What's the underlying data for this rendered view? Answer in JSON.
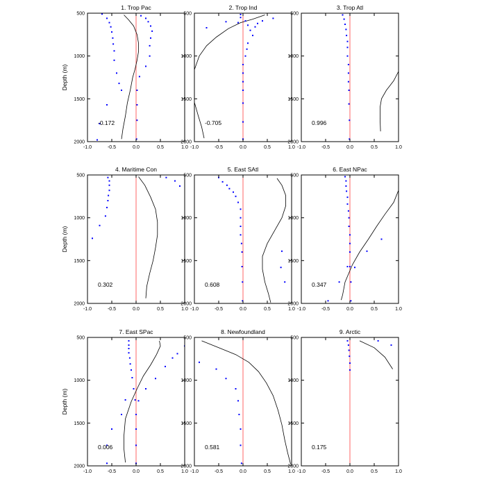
{
  "chart_data": [
    {
      "type": "line",
      "title": "1. Trop Pac",
      "stat": "-0.172",
      "ylabel": "Depth (m)",
      "xlim": [
        -1,
        1
      ],
      "ylim": [
        500,
        2000
      ],
      "yreverse": true,
      "xticks": [
        "-1.0",
        "-0.5",
        "0.0",
        "0.5",
        "1.0"
      ],
      "yticks": [
        "500",
        "1000",
        "1500",
        "2000"
      ],
      "zero_line_color": "#ff6666",
      "point_color": "#0000ff",
      "curve": [
        [
          -0.25,
          520
        ],
        [
          -0.15,
          580
        ],
        [
          -0.05,
          650
        ],
        [
          0.02,
          750
        ],
        [
          0.05,
          850
        ],
        [
          0.05,
          950
        ],
        [
          0.02,
          1050
        ],
        [
          -0.02,
          1150
        ],
        [
          -0.07,
          1250
        ],
        [
          -0.12,
          1400
        ],
        [
          -0.18,
          1550
        ],
        [
          -0.22,
          1700
        ],
        [
          -0.27,
          1850
        ],
        [
          -0.3,
          1970
        ]
      ],
      "points": [
        [
          -0.7,
          510
        ],
        [
          -0.6,
          560
        ],
        [
          -0.55,
          610
        ],
        [
          -0.52,
          660
        ],
        [
          -0.5,
          720
        ],
        [
          -0.48,
          790
        ],
        [
          -0.47,
          860
        ],
        [
          -0.45,
          940
        ],
        [
          -0.45,
          1050
        ],
        [
          -0.4,
          1200
        ],
        [
          -0.35,
          1320
        ],
        [
          -0.3,
          1400
        ],
        [
          -0.6,
          1570
        ],
        [
          -0.75,
          1790
        ],
        [
          -0.8,
          1980
        ],
        [
          0.1,
          530
        ],
        [
          0.2,
          560
        ],
        [
          0.25,
          600
        ],
        [
          0.3,
          650
        ],
        [
          0.33,
          710
        ],
        [
          0.3,
          790
        ],
        [
          0.28,
          880
        ],
        [
          0.28,
          1000
        ],
        [
          0.2,
          1120
        ],
        [
          0.07,
          1240
        ],
        [
          0.02,
          1400
        ],
        [
          0.02,
          1570
        ],
        [
          0.02,
          1750
        ],
        [
          0.01,
          1970
        ]
      ]
    },
    {
      "type": "line",
      "title": "2. Trop Ind",
      "stat": "-0.705",
      "xlim": [
        -1,
        1
      ],
      "ylim": [
        500,
        2000
      ],
      "yreverse": true,
      "xticks": [
        "-1.0",
        "-0.5",
        "0.0",
        "0.5",
        "1.0"
      ],
      "yticks": [
        "500",
        "1000",
        "1500",
        "2000"
      ],
      "zero_line_color": "#ff6666",
      "point_color": "#0000ff",
      "curve": [
        [
          0.45,
          520
        ],
        [
          0.2,
          570
        ],
        [
          -0.05,
          610
        ],
        [
          -0.3,
          680
        ],
        [
          -0.55,
          780
        ],
        [
          -0.75,
          880
        ],
        [
          -0.9,
          1000
        ],
        [
          -1.0,
          1160
        ],
        [
          -1.0,
          1540
        ],
        [
          -0.92,
          1700
        ],
        [
          -0.85,
          1830
        ],
        [
          -0.8,
          1960
        ]
      ],
      "points": [
        [
          -0.05,
          515
        ],
        [
          -0.05,
          550
        ],
        [
          0.05,
          590
        ],
        [
          0.1,
          640
        ],
        [
          0.15,
          700
        ],
        [
          0.2,
          760
        ],
        [
          0.1,
          850
        ],
        [
          0.08,
          920
        ],
        [
          0.05,
          1000
        ],
        [
          0.0,
          1100
        ],
        [
          0.0,
          1200
        ],
        [
          0.0,
          1300
        ],
        [
          0.0,
          1400
        ],
        [
          0.0,
          1550
        ],
        [
          0.0,
          1770
        ],
        [
          0.0,
          1970
        ],
        [
          0.62,
          560
        ],
        [
          0.4,
          590
        ],
        [
          0.3,
          620
        ],
        [
          0.25,
          660
        ],
        [
          -0.1,
          610
        ],
        [
          -0.35,
          600
        ],
        [
          -0.75,
          670
        ]
      ]
    },
    {
      "type": "line",
      "title": "3. Trop Atl",
      "stat": "0.996",
      "xlim": [
        -1,
        1
      ],
      "ylim": [
        500,
        2000
      ],
      "yreverse": true,
      "xticks": [
        "-1.0",
        "-0.5",
        "0.0",
        "0.5",
        "1.0"
      ],
      "yticks": [
        "500",
        "1000",
        "1500",
        "2000"
      ],
      "zero_line_color": "#ff6666",
      "point_color": "#0000ff",
      "curve": [
        [
          1.0,
          1180
        ],
        [
          0.9,
          1290
        ],
        [
          0.75,
          1400
        ],
        [
          0.65,
          1500
        ],
        [
          0.62,
          1600
        ],
        [
          0.62,
          1730
        ],
        [
          0.63,
          1880
        ]
      ],
      "points": [
        [
          -0.15,
          520
        ],
        [
          -0.12,
          570
        ],
        [
          -0.1,
          630
        ],
        [
          -0.08,
          690
        ],
        [
          -0.07,
          760
        ],
        [
          -0.05,
          830
        ],
        [
          -0.05,
          900
        ],
        [
          -0.05,
          1000
        ],
        [
          -0.03,
          1100
        ],
        [
          -0.03,
          1200
        ],
        [
          -0.03,
          1300
        ],
        [
          -0.02,
          1400
        ],
        [
          -0.02,
          1560
        ],
        [
          -0.01,
          1750
        ],
        [
          -0.01,
          1970
        ]
      ]
    },
    {
      "type": "line",
      "title": "4. Maritime Con",
      "stat": "0.302",
      "ylabel": "Depth (m)",
      "xlim": [
        -1,
        1
      ],
      "ylim": [
        500,
        2000
      ],
      "yreverse": true,
      "xticks": [
        "-1.0",
        "-0.5",
        "0.0",
        "0.5",
        "1.0"
      ],
      "yticks": [
        "500",
        "1000",
        "1500",
        "2000"
      ],
      "zero_line_color": "#ff6666",
      "point_color": "#0000ff",
      "curve": [
        [
          0.05,
          520
        ],
        [
          0.18,
          620
        ],
        [
          0.3,
          760
        ],
        [
          0.4,
          900
        ],
        [
          0.44,
          1050
        ],
        [
          0.44,
          1200
        ],
        [
          0.4,
          1350
        ],
        [
          0.35,
          1500
        ],
        [
          0.28,
          1650
        ],
        [
          0.22,
          1800
        ],
        [
          0.2,
          1940
        ]
      ],
      "points": [
        [
          -0.58,
          530
        ],
        [
          -0.55,
          570
        ],
        [
          -0.55,
          620
        ],
        [
          -0.55,
          680
        ],
        [
          -0.57,
          740
        ],
        [
          -0.58,
          800
        ],
        [
          -0.6,
          880
        ],
        [
          -0.63,
          980
        ],
        [
          -0.75,
          1090
        ],
        [
          -0.9,
          1240
        ],
        [
          0.62,
          530
        ],
        [
          0.8,
          570
        ],
        [
          0.9,
          630
        ]
      ]
    },
    {
      "type": "line",
      "title": "5. East SAtl",
      "stat": "0.608",
      "xlim": [
        -1,
        1
      ],
      "ylim": [
        500,
        2000
      ],
      "yreverse": true,
      "xticks": [
        "-1.0",
        "-0.5",
        "0.0",
        "0.5",
        "1.0"
      ],
      "yticks": [
        "500",
        "1000",
        "1500",
        "2000"
      ],
      "zero_line_color": "#ff6666",
      "point_color": "#0000ff",
      "curve": [
        [
          0.7,
          540
        ],
        [
          0.8,
          620
        ],
        [
          0.88,
          740
        ],
        [
          0.88,
          860
        ],
        [
          0.8,
          1000
        ],
        [
          0.65,
          1150
        ],
        [
          0.5,
          1300
        ],
        [
          0.4,
          1450
        ],
        [
          0.4,
          1600
        ],
        [
          0.45,
          1750
        ],
        [
          0.52,
          1880
        ],
        [
          0.57,
          1990
        ]
      ],
      "points": [
        [
          -0.5,
          530
        ],
        [
          -0.42,
          580
        ],
        [
          -0.33,
          620
        ],
        [
          -0.28,
          660
        ],
        [
          -0.2,
          700
        ],
        [
          -0.15,
          750
        ],
        [
          -0.1,
          820
        ],
        [
          -0.05,
          900
        ],
        [
          -0.05,
          1000
        ],
        [
          -0.05,
          1100
        ],
        [
          -0.05,
          1200
        ],
        [
          -0.03,
          1300
        ],
        [
          -0.02,
          1400
        ],
        [
          -0.02,
          1570
        ],
        [
          -0.01,
          1750
        ],
        [
          -0.01,
          1970
        ],
        [
          0.8,
          1390
        ],
        [
          0.78,
          1580
        ],
        [
          0.86,
          1750
        ]
      ]
    },
    {
      "type": "line",
      "title": "6. East NPac",
      "stat": "0.347",
      "xlim": [
        -1,
        1
      ],
      "ylim": [
        500,
        2000
      ],
      "yreverse": true,
      "xticks": [
        "-1.0",
        "-0.5",
        "0.0",
        "0.5",
        "1.0"
      ],
      "yticks": [
        "500",
        "1000",
        "1500",
        "2000"
      ],
      "zero_line_color": "#ff6666",
      "point_color": "#0000ff",
      "curve": [
        [
          1.0,
          680
        ],
        [
          0.9,
          820
        ],
        [
          0.72,
          960
        ],
        [
          0.55,
          1100
        ],
        [
          0.38,
          1250
        ],
        [
          0.2,
          1400
        ],
        [
          0.05,
          1550
        ],
        [
          -0.1,
          1750
        ],
        [
          -0.15,
          1900
        ],
        [
          -0.18,
          1960
        ]
      ],
      "points": [
        [
          -0.1,
          520
        ],
        [
          -0.08,
          570
        ],
        [
          -0.08,
          630
        ],
        [
          -0.07,
          690
        ],
        [
          -0.05,
          760
        ],
        [
          -0.05,
          840
        ],
        [
          -0.03,
          920
        ],
        [
          -0.02,
          1000
        ],
        [
          -0.02,
          1100
        ],
        [
          0.0,
          1200
        ],
        [
          0.0,
          1300
        ],
        [
          0.0,
          1400
        ],
        [
          0.0,
          1570
        ],
        [
          0.02,
          1750
        ],
        [
          0.02,
          1970
        ],
        [
          0.65,
          1250
        ],
        [
          0.35,
          1390
        ],
        [
          0.1,
          1580
        ],
        [
          -0.05,
          1570
        ],
        [
          -0.22,
          1750
        ],
        [
          -0.45,
          1970
        ]
      ]
    },
    {
      "type": "line",
      "title": "7. East SPac",
      "stat": "0.006",
      "ylabel": "Depth (m)",
      "xlim": [
        -1,
        1
      ],
      "ylim": [
        500,
        2000
      ],
      "yreverse": true,
      "xticks": [
        "-1.0",
        "-0.5",
        "0.0",
        "0.5",
        "1.0"
      ],
      "yticks": [
        "500",
        "1000",
        "1500",
        "2000"
      ],
      "zero_line_color": "#ff6666",
      "point_color": "#0000ff",
      "curve": [
        [
          0.48,
          540
        ],
        [
          0.5,
          600
        ],
        [
          0.42,
          700
        ],
        [
          0.3,
          820
        ],
        [
          0.15,
          950
        ],
        [
          0.02,
          1100
        ],
        [
          -0.1,
          1250
        ],
        [
          -0.22,
          1450
        ],
        [
          -0.25,
          1650
        ],
        [
          -0.25,
          1800
        ],
        [
          -0.22,
          1960
        ]
      ],
      "points": [
        [
          -0.15,
          540
        ],
        [
          -0.15,
          590
        ],
        [
          -0.15,
          630
        ],
        [
          -0.15,
          680
        ],
        [
          -0.13,
          740
        ],
        [
          -0.12,
          810
        ],
        [
          -0.1,
          880
        ],
        [
          -0.08,
          970
        ],
        [
          -0.05,
          1100
        ],
        [
          -0.02,
          1230
        ],
        [
          0.0,
          1400
        ],
        [
          0.0,
          1570
        ],
        [
          0.0,
          1760
        ],
        [
          0.0,
          1970
        ],
        [
          1.0,
          600
        ],
        [
          0.85,
          690
        ],
        [
          0.75,
          740
        ],
        [
          0.6,
          840
        ],
        [
          0.4,
          980
        ],
        [
          0.2,
          1100
        ],
        [
          0.05,
          1240
        ],
        [
          -0.22,
          1230
        ],
        [
          -0.3,
          1400
        ],
        [
          -0.5,
          1570
        ],
        [
          -0.6,
          1760
        ],
        [
          -0.6,
          1970
        ]
      ]
    },
    {
      "type": "line",
      "title": "8. Newfoundland",
      "stat": "0.581",
      "xlim": [
        -1,
        1
      ],
      "ylim": [
        500,
        2000
      ],
      "yreverse": true,
      "xticks": [
        "-1.0",
        "-0.5",
        "0.0",
        "0.5",
        "1.0"
      ],
      "yticks": [
        "500",
        "1000",
        "1500",
        "2000"
      ],
      "zero_line_color": "#ff6666",
      "point_color": "#0000ff",
      "curve": [
        [
          -0.85,
          540
        ],
        [
          -0.5,
          620
        ],
        [
          -0.15,
          700
        ],
        [
          0.12,
          790
        ],
        [
          0.32,
          900
        ],
        [
          0.48,
          1030
        ],
        [
          0.62,
          1180
        ],
        [
          0.72,
          1350
        ],
        [
          0.8,
          1520
        ],
        [
          0.86,
          1700
        ],
        [
          0.92,
          1850
        ],
        [
          0.98,
          1980
        ]
      ],
      "points": [
        [
          -0.9,
          790
        ],
        [
          -0.55,
          870
        ],
        [
          -0.35,
          980
        ],
        [
          -0.15,
          1100
        ],
        [
          -0.1,
          1240
        ],
        [
          -0.08,
          1400
        ],
        [
          -0.05,
          1570
        ],
        [
          -0.05,
          1760
        ],
        [
          -0.03,
          1970
        ]
      ]
    },
    {
      "type": "line",
      "title": "9. Arctic",
      "stat": "0.175",
      "xlim": [
        -1,
        1
      ],
      "ylim": [
        500,
        2000
      ],
      "yreverse": true,
      "xticks": [
        "-1.0",
        "-0.5",
        "0.0",
        "0.5",
        "1.0"
      ],
      "yticks": [
        "500",
        "1000",
        "1500",
        "2000"
      ],
      "zero_line_color": "#ff6666",
      "point_color": "#0000ff",
      "curve": [
        [
          0.2,
          540
        ],
        [
          0.5,
          620
        ],
        [
          0.72,
          730
        ],
        [
          0.88,
          870
        ]
      ],
      "points": [
        [
          -0.05,
          540
        ],
        [
          -0.03,
          590
        ],
        [
          -0.02,
          650
        ],
        [
          -0.01,
          720
        ],
        [
          0.0,
          800
        ],
        [
          0.0,
          880
        ],
        [
          0.58,
          540
        ],
        [
          0.85,
          590
        ]
      ]
    }
  ]
}
